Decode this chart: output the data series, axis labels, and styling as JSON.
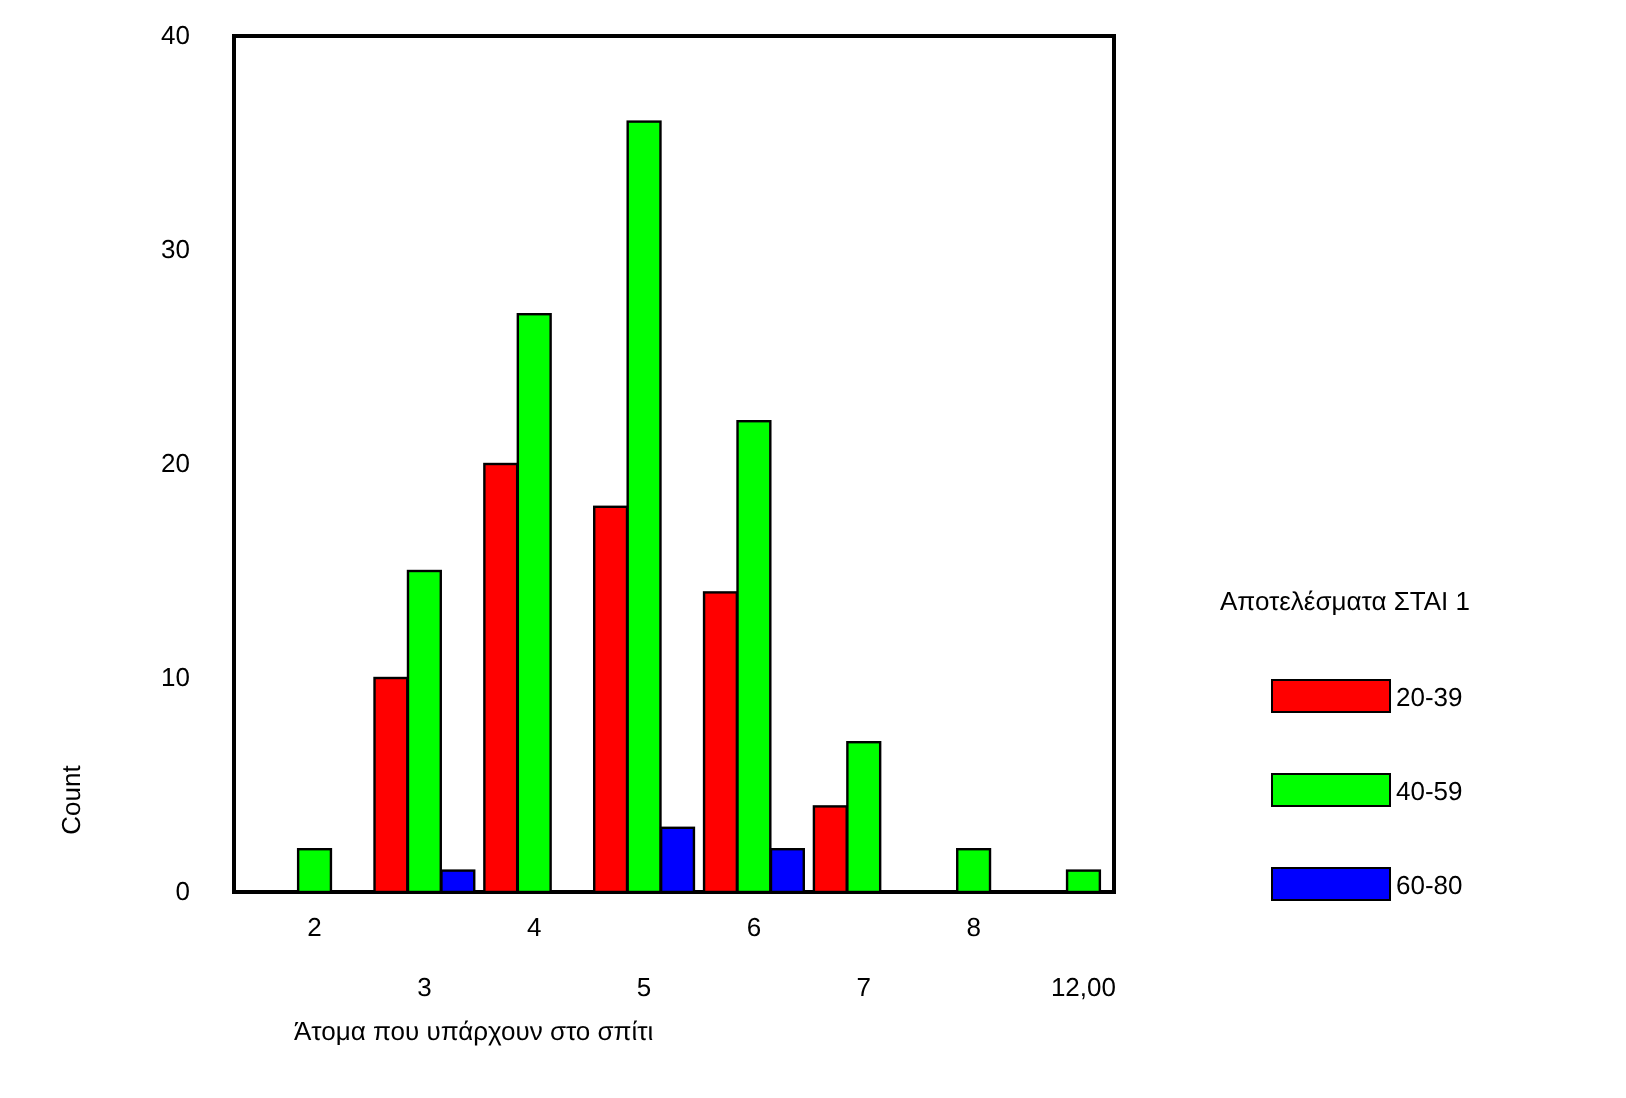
{
  "chart_data": {
    "type": "bar",
    "xlabel": "Άτομα που υπάρχουν στο σπίτι",
    "ylabel": "Count",
    "legend_title": "Αποτελέσματα ΣΤΑΙ 1",
    "categories": [
      "2",
      "3",
      "4",
      "5",
      "6",
      "7",
      "8",
      "12,00"
    ],
    "series": [
      {
        "name": "20-39",
        "color": "#ff0000",
        "values": [
          null,
          10,
          20,
          18,
          14,
          4,
          null,
          null
        ]
      },
      {
        "name": "40-59",
        "color": "#00ff00",
        "values": [
          2,
          15,
          27,
          36,
          22,
          7,
          2,
          1
        ]
      },
      {
        "name": "60-80",
        "color": "#0000ff",
        "values": [
          null,
          1,
          null,
          3,
          2,
          null,
          null,
          null
        ]
      }
    ],
    "ylim": [
      0,
      40
    ],
    "yticks": [
      0,
      10,
      20,
      30,
      40
    ],
    "grid": false,
    "legend": "right"
  }
}
